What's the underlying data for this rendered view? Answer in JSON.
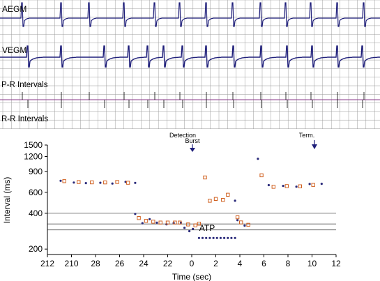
{
  "egm": {
    "aegm_label": "AEGM",
    "vegm_label": "VEGM",
    "pr_label": "P-R Intervals",
    "rr_label": "R-R Intervals"
  },
  "annotations": {
    "detection": "Detection",
    "burst": "Burst",
    "term": "Term.",
    "atp": "ATP"
  },
  "colors": {
    "trace": "#1f1f7a",
    "grid": "#9a9a9a",
    "pr_line": "#8a3a8a",
    "atrial_marker": "#2a2a7a",
    "ventricular_marker": "#d06020"
  },
  "chart_data": {
    "type": "scatter",
    "title": "",
    "xlabel": "Time (sec)",
    "ylabel": "Interval (ms)",
    "y_scale": "log",
    "ylim": [
      180,
      1500
    ],
    "xlim": [
      -12,
      12
    ],
    "x_tick_labels": [
      "212",
      "210",
      "28",
      "26",
      "24",
      "22",
      "0",
      "2",
      "4",
      "6",
      "8",
      "10",
      "12"
    ],
    "y_tick_labels": [
      "1500",
      "1200",
      "900",
      "600",
      "400",
      "200"
    ],
    "y_ticks": [
      1500,
      1200,
      900,
      600,
      400,
      200
    ],
    "reference_lines": [
      400,
      325,
      290
    ],
    "series": [
      {
        "marker": "dot",
        "points": [
          [
            -10.9,
            750
          ],
          [
            -9.8,
            725
          ],
          [
            -8.8,
            718
          ],
          [
            -7.6,
            722
          ],
          [
            -6.6,
            712
          ],
          [
            -5.5,
            735
          ],
          [
            -4.7,
            720
          ],
          [
            -4.7,
            395
          ],
          [
            -4.1,
            330
          ],
          [
            -3.5,
            357
          ],
          [
            -2.9,
            333
          ],
          [
            -2.1,
            323
          ],
          [
            -1.5,
            331
          ],
          [
            -0.9,
            333
          ],
          [
            -0.6,
            302
          ],
          [
            -0.2,
            283
          ],
          [
            0.1,
            295
          ],
          [
            0.6,
            248
          ],
          [
            0.9,
            248
          ],
          [
            1.2,
            248
          ],
          [
            1.5,
            248
          ],
          [
            1.8,
            248
          ],
          [
            2.1,
            248
          ],
          [
            2.4,
            248
          ],
          [
            2.7,
            248
          ],
          [
            3.0,
            248
          ],
          [
            3.3,
            248
          ],
          [
            3.6,
            248
          ],
          [
            3.6,
            510
          ],
          [
            3.8,
            350
          ],
          [
            4.4,
            315
          ],
          [
            5.5,
            1150
          ],
          [
            6.4,
            690
          ],
          [
            7.6,
            680
          ],
          [
            8.7,
            670
          ],
          [
            9.8,
            705
          ],
          [
            10.8,
            708
          ]
        ]
      },
      {
        "marker": "square",
        "points": [
          [
            -10.6,
            745
          ],
          [
            -9.4,
            732
          ],
          [
            -8.3,
            728
          ],
          [
            -7.2,
            727
          ],
          [
            -6.2,
            733
          ],
          [
            -5.3,
            722
          ],
          [
            -4.4,
            365
          ],
          [
            -3.8,
            345
          ],
          [
            -3.2,
            340
          ],
          [
            -2.6,
            334
          ],
          [
            -2.0,
            334
          ],
          [
            -1.4,
            334
          ],
          [
            -1.0,
            334
          ],
          [
            -0.3,
            322
          ],
          [
            0.3,
            316
          ],
          [
            0.6,
            327
          ],
          [
            1.1,
            800
          ],
          [
            1.5,
            510
          ],
          [
            2.0,
            528
          ],
          [
            2.6,
            518
          ],
          [
            3.0,
            573
          ],
          [
            3.8,
            370
          ],
          [
            4.1,
            335
          ],
          [
            4.7,
            320
          ],
          [
            5.8,
            835
          ],
          [
            6.8,
            668
          ],
          [
            7.9,
            677
          ],
          [
            9.0,
            674
          ],
          [
            10.1,
            693
          ]
        ]
      }
    ]
  }
}
